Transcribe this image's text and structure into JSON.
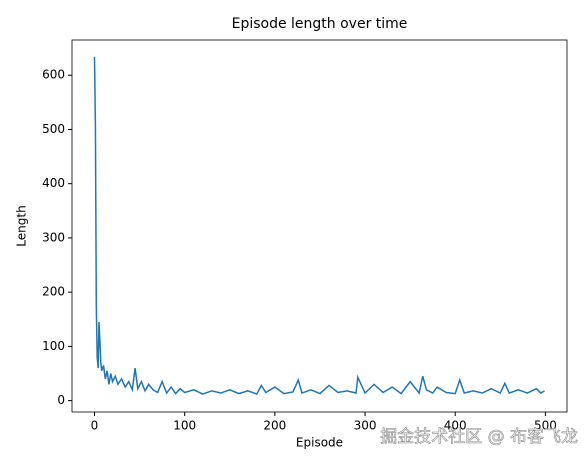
{
  "chart_data": {
    "type": "line",
    "title": "Episode length over time",
    "x_label": "Episode",
    "y_label": "Length",
    "x": [
      0,
      1,
      2,
      3,
      4,
      5,
      6,
      7,
      8,
      10,
      12,
      14,
      16,
      18,
      20,
      23,
      26,
      30,
      34,
      38,
      42,
      45,
      48,
      52,
      56,
      60,
      65,
      70,
      75,
      80,
      85,
      90,
      95,
      100,
      110,
      120,
      130,
      140,
      150,
      160,
      170,
      180,
      185,
      190,
      200,
      210,
      220,
      226,
      230,
      240,
      250,
      260,
      270,
      280,
      290,
      292,
      300,
      310,
      320,
      330,
      340,
      350,
      360,
      364,
      368,
      375,
      380,
      390,
      400,
      405,
      410,
      420,
      430,
      440,
      450,
      455,
      460,
      470,
      480,
      490,
      495,
      499
    ],
    "series": [
      {
        "color": "#1f77b4",
        "values": [
          634,
          510,
          175,
          80,
          60,
          145,
          110,
          70,
          55,
          65,
          40,
          55,
          30,
          50,
          35,
          45,
          30,
          40,
          25,
          35,
          20,
          60,
          22,
          35,
          18,
          30,
          20,
          15,
          35,
          14,
          25,
          13,
          22,
          15,
          20,
          12,
          18,
          14,
          20,
          13,
          18,
          12,
          28,
          15,
          25,
          13,
          16,
          38,
          14,
          20,
          13,
          28,
          15,
          18,
          14,
          43,
          14,
          30,
          15,
          25,
          13,
          35,
          14,
          45,
          20,
          14,
          25,
          15,
          13,
          38,
          14,
          18,
          14,
          22,
          14,
          32,
          14,
          20,
          14,
          22,
          14,
          18
        ]
      }
    ],
    "xlim": [
      -24.95,
      523.95
    ],
    "ylim": [
      -21,
      665
    ],
    "xticks": [
      0,
      100,
      200,
      300,
      400,
      500
    ],
    "yticks": [
      0,
      100,
      200,
      300,
      400,
      500,
      600
    ],
    "watermark": "掘金技术社区 @ 布客飞龙"
  }
}
